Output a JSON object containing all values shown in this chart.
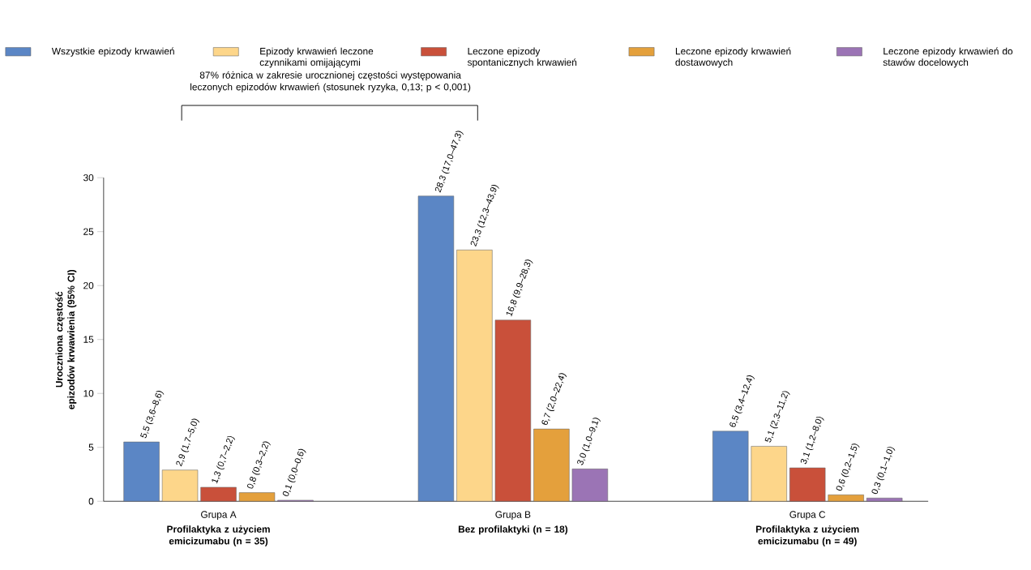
{
  "chart_data": {
    "type": "bar",
    "ylabel": "Uroczniona częstość epizodów krwawienia (95% CI)",
    "categories": [
      "Grupa A",
      "Grupa B",
      "Grupa C"
    ],
    "series": [
      {
        "name": "Wszystkie epizody krwawień",
        "color": "#5b86c5",
        "values": [
          5.5,
          28.3,
          6.5
        ],
        "value_labels": [
          "5,5 (3,6–8,6)",
          "28,3 (17,0–47,3)",
          "6,5 (3,4–12,4)"
        ]
      },
      {
        "name": "Epizody krwawień leczone czynnikami omijającymi",
        "color": "#fdd68a",
        "values": [
          2.9,
          23.3,
          5.1
        ],
        "value_labels": [
          "2,9 (1,7–5,0)",
          "23,3 (12,3–43,9)",
          "5,1 (2,3–11,2)"
        ]
      },
      {
        "name": "Leczone epizody spontanicznych krwawień",
        "color": "#c9503a",
        "values": [
          1.3,
          16.8,
          3.1
        ],
        "value_labels": [
          "1,3 (0,7–2,2)",
          "16,8 (9,9–28,3)",
          "3,1 (1,2–8,0)"
        ]
      },
      {
        "name": "Leczone epizody krwawień dostawowych",
        "color": "#e4a03c",
        "values": [
          0.8,
          6.7,
          0.6
        ],
        "value_labels": [
          "0,8 (0,3–2,2)",
          "6,7 (2,0–22,4)",
          "0,6 (0,2–1,5)"
        ]
      },
      {
        "name": "Leczone epizody krwawień do stawów docelowych",
        "color": "#9b74b5",
        "values": [
          0.1,
          3.0,
          0.3
        ],
        "value_labels": [
          "0,1 (0,0–0,6)",
          "3,0 (1,0–9,1)",
          "0,3 (0,1–1,0)"
        ]
      }
    ],
    "ylim": [
      0,
      30
    ],
    "yticks": [
      0,
      5,
      10,
      15,
      20,
      25,
      30
    ],
    "legend": "top",
    "annotations": [
      "87% różnica w zakresie urocznionej częstości występowania leczonych epizodów krwawień (stosunek ryzyka, 0,13; p < 0,001)",
      "Profilaktyka z użyciem emicizumabu (n = 35)",
      "Bez profilaktyki (n = 18)",
      "Profilaktyka z użyciem emicizumabu (n = 49)"
    ]
  }
}
